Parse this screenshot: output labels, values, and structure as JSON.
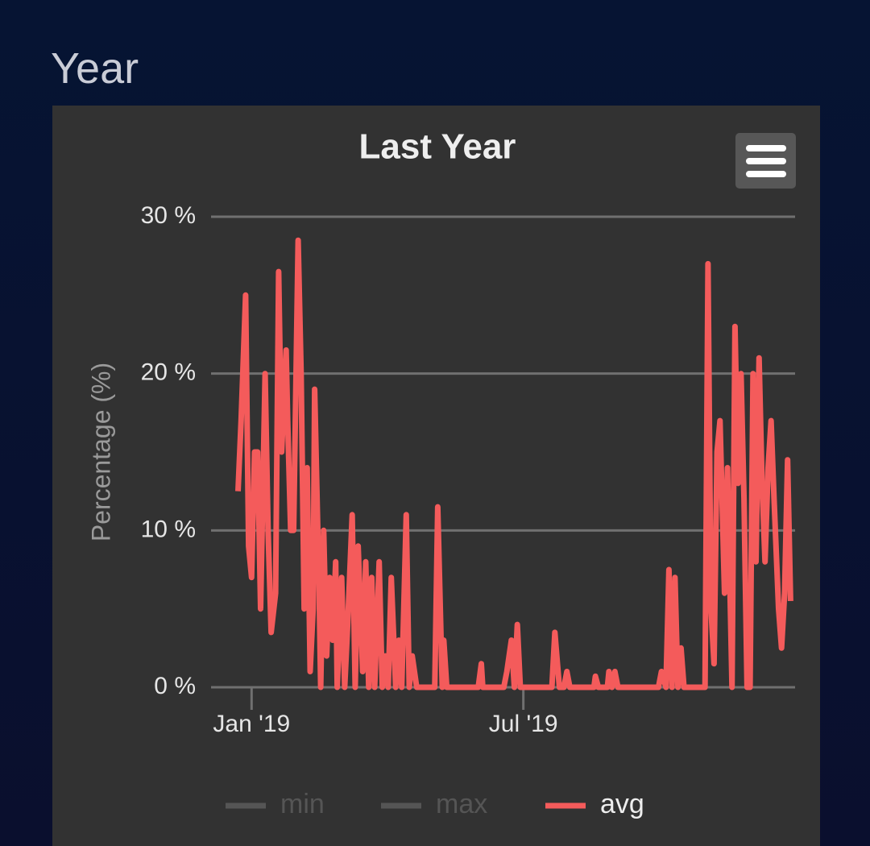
{
  "heading": "Year",
  "chart_data": {
    "type": "line",
    "title": "Last Year",
    "y_label": "Percentage (%)",
    "x": [
      -9,
      -7,
      -4,
      -2,
      0,
      2,
      4,
      6,
      9,
      11,
      13,
      16,
      18,
      20,
      23,
      24,
      26,
      28,
      31,
      33,
      35,
      37,
      39,
      41,
      42,
      45,
      46,
      48,
      50,
      52,
      54,
      56,
      57,
      60,
      62,
      64,
      67,
      69,
      71,
      74,
      76,
      78,
      80,
      82,
      85,
      87,
      89,
      91,
      93,
      96,
      98,
      100,
      103,
      105,
      107,
      110,
      122,
      124,
      127,
      128,
      130,
      151,
      153,
      154,
      168,
      170,
      173,
      175,
      177,
      179,
      200,
      202,
      205,
      208,
      210,
      212,
      228,
      229,
      231,
      237,
      238,
      240,
      242,
      244,
      271,
      273,
      276,
      278,
      280,
      282,
      284,
      286,
      288,
      302,
      304,
      306,
      308,
      310,
      312,
      315,
      317,
      320,
      322,
      324,
      326,
      328,
      330,
      332,
      334,
      336,
      338,
      340,
      342,
      344,
      346,
      348,
      351,
      353,
      355,
      357,
      359
    ],
    "series": [
      {
        "name": "min",
        "color": "#666666",
        "visible": false
      },
      {
        "name": "max",
        "color": "#666666",
        "visible": false
      },
      {
        "name": "avg",
        "color": "#f45b5b",
        "visible": true,
        "values": [
          12.5,
          17,
          25,
          9,
          7,
          15,
          15,
          5,
          20,
          10,
          3.5,
          6,
          26.5,
          15,
          21.5,
          17,
          10,
          10,
          28.5,
          20,
          5,
          14,
          1,
          5,
          19,
          6,
          0,
          10,
          2,
          7,
          3,
          8,
          0,
          7,
          0,
          4,
          11,
          0,
          9,
          1,
          8,
          0,
          7,
          0,
          8,
          0,
          2,
          0,
          7,
          0,
          3,
          0,
          11,
          0,
          2,
          0,
          0,
          11.5,
          0,
          3,
          0,
          0,
          1.5,
          0,
          0,
          1,
          3,
          0,
          4,
          0,
          0,
          3.5,
          0,
          0,
          1,
          0,
          0,
          0.7,
          0,
          0,
          1,
          0,
          1,
          0,
          0,
          1,
          0,
          7.5,
          0,
          7,
          0,
          2.5,
          0,
          0,
          27,
          5,
          1.5,
          15,
          17,
          6,
          14,
          0,
          23,
          13,
          20,
          12,
          0,
          0,
          20,
          8,
          21,
          13,
          8,
          14,
          17,
          12,
          5,
          2.5,
          6,
          14.5,
          5.5
        ]
      }
    ],
    "xlim": [
      -27,
      362
    ],
    "xticks": [
      {
        "value": 0,
        "label": "Jan '19"
      },
      {
        "value": 181,
        "label": "Jul '19"
      }
    ],
    "ylim": [
      0,
      30
    ],
    "yticks": [
      {
        "value": 0,
        "label": "0 %"
      },
      {
        "value": 10,
        "label": "10 %"
      },
      {
        "value": 20,
        "label": "20 %"
      },
      {
        "value": 30,
        "label": "30 %"
      }
    ],
    "grid": true
  }
}
